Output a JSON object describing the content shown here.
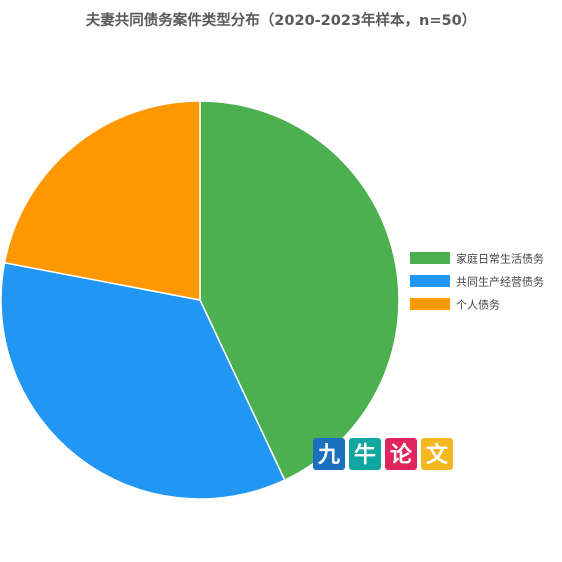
{
  "chart_data": {
    "type": "pie",
    "title": "夫妻共同债务案件类型分布（2020-2023年样本，n=50）",
    "slices": [
      {
        "label": "家庭日常生活债务",
        "value": 43,
        "color": "#4caf50"
      },
      {
        "label": "共同生产经营债务",
        "value": 35,
        "color": "#2196f3"
      },
      {
        "label": "个人债务",
        "value": 22,
        "color": "#ff9800"
      }
    ],
    "start_angle_deg": -90,
    "direction": "clockwise",
    "legend": "right"
  },
  "watermark": {
    "chars": [
      {
        "text": "九",
        "color": "#1a6fc0"
      },
      {
        "text": "牛",
        "color": "#11a7a0"
      },
      {
        "text": "论",
        "color": "#e0245e"
      },
      {
        "text": "文",
        "color": "#f3b820"
      }
    ]
  }
}
